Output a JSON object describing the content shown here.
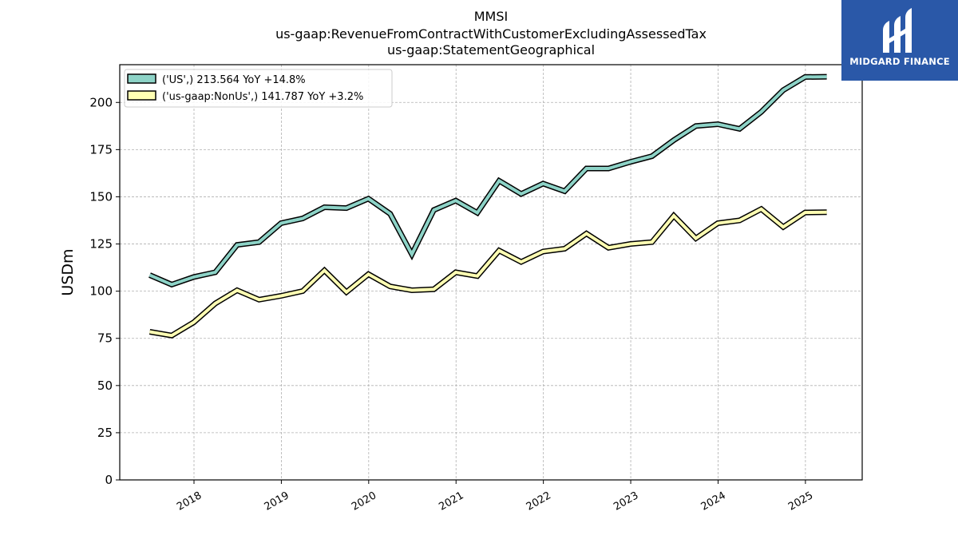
{
  "header": {
    "title_line1": "MMSI",
    "title_line2": "us-gaap:RevenueFromContractWithCustomerExcludingAssessedTax",
    "title_line3": "us-gaap:StatementGeographical"
  },
  "logo": {
    "text": "MIDGARD FINANCE",
    "icon": "mf-monogram-icon",
    "bg_color": "#2a58a8"
  },
  "chart_data": {
    "type": "line",
    "ylabel": "USDm",
    "xlabel": "",
    "ylim": [
      0,
      220
    ],
    "yticks": [
      0,
      25,
      50,
      75,
      100,
      125,
      150,
      175,
      200
    ],
    "xlim": [
      2017.15,
      2025.65
    ],
    "xticks": [
      2018,
      2019,
      2020,
      2021,
      2022,
      2023,
      2024,
      2025
    ],
    "x_tick_labels": [
      "2018",
      "2019",
      "2020",
      "2021",
      "2022",
      "2023",
      "2024",
      "2025"
    ],
    "grid": true,
    "legend_position": "top-left",
    "x": [
      "2017-06-30",
      "2017-09-30",
      "2017-12-31",
      "2018-03-31",
      "2018-06-30",
      "2018-09-30",
      "2018-12-31",
      "2019-03-31",
      "2019-06-30",
      "2019-09-30",
      "2019-12-31",
      "2020-03-31",
      "2020-06-30",
      "2020-09-30",
      "2020-12-31",
      "2021-03-31",
      "2021-06-30",
      "2021-09-30",
      "2021-12-31",
      "2022-03-31",
      "2022-06-30",
      "2022-09-30",
      "2022-12-31",
      "2023-03-31",
      "2023-06-30",
      "2023-09-30",
      "2023-12-31",
      "2024-03-31",
      "2024-06-30",
      "2024-09-30",
      "2024-12-31",
      "2025-03-31"
    ],
    "series": [
      {
        "name": "('US',) 213.564 YoY +14.8%",
        "color": "#8dd3c7",
        "values": [
          108.5,
          103.5,
          107.5,
          110,
          124.5,
          126,
          136,
          138.5,
          144.5,
          144,
          149,
          141,
          119.5,
          143,
          148,
          141.5,
          158.5,
          151.5,
          157,
          153,
          165,
          165,
          168.5,
          171.5,
          180,
          187.5,
          188.5,
          186,
          195,
          206.5,
          213.5,
          213.6
        ]
      },
      {
        "name": "('us-gaap:NonUs',) 141.787 YoY +3.2%",
        "color": "#ffffb3",
        "values": [
          78.5,
          76.5,
          83.5,
          93.5,
          100.5,
          95.5,
          97.5,
          100,
          111,
          99.5,
          109,
          102.5,
          100.5,
          101,
          110,
          108,
          121.5,
          115.5,
          121,
          122.5,
          130.5,
          123,
          125,
          126,
          140,
          128,
          136,
          137.5,
          143.5,
          134,
          141.7,
          141.8
        ]
      }
    ]
  }
}
